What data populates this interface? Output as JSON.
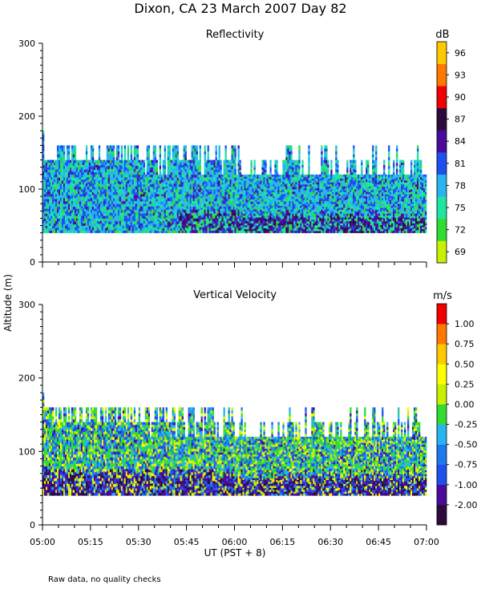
{
  "title": "Dixon, CA 23 March 2007  Day  82",
  "shared_ylabel": "Altitude (m)",
  "xlabel": "UT  (PST + 8)",
  "footnote": "Raw data, no quality checks",
  "chart_data": [
    {
      "type": "heatmap",
      "title": "Reflectivity",
      "units": "dB",
      "ylim": [
        0,
        300
      ],
      "yticks": [
        0,
        100,
        200,
        300
      ],
      "xlim": [
        "05:00",
        "07:00"
      ],
      "xticks": [
        "05:00",
        "05:15",
        "05:30",
        "05:45",
        "06:00",
        "06:15",
        "06:30",
        "06:45",
        "07:00"
      ],
      "colorbar": {
        "levels": [
          "69",
          "72",
          "75",
          "78",
          "81",
          "84",
          "87",
          "90",
          "93",
          "96"
        ],
        "colors": [
          "#c8f000",
          "#32dc32",
          "#1ee6a0",
          "#28b4f0",
          "#1e50f0",
          "#4b0a9b",
          "#2d0a3c",
          "#f00000",
          "#ff7800",
          "#ffc800"
        ]
      },
      "data_range_altitude": [
        40,
        160
      ]
    },
    {
      "type": "heatmap",
      "title": "Vertical Velocity",
      "units": "m/s",
      "ylim": [
        0,
        300
      ],
      "yticks": [
        0,
        100,
        200,
        300
      ],
      "xlim": [
        "05:00",
        "07:00"
      ],
      "xticks": [
        "05:00",
        "05:15",
        "05:30",
        "05:45",
        "06:00",
        "06:15",
        "06:30",
        "06:45",
        "07:00"
      ],
      "colorbar": {
        "levels": [
          "-2.00",
          "-1.00",
          "-0.75",
          "-0.50",
          "-0.25",
          "0.00",
          "0.25",
          "0.50",
          "0.75",
          "1.00"
        ],
        "colors": [
          "#2d0a3c",
          "#4b0a9b",
          "#1e50f0",
          "#1e78f0",
          "#28b4f0",
          "#32dc32",
          "#c8f000",
          "#ffff00",
          "#ffc800",
          "#ff7800",
          "#f00000"
        ]
      },
      "data_range_altitude": [
        40,
        160
      ]
    }
  ]
}
